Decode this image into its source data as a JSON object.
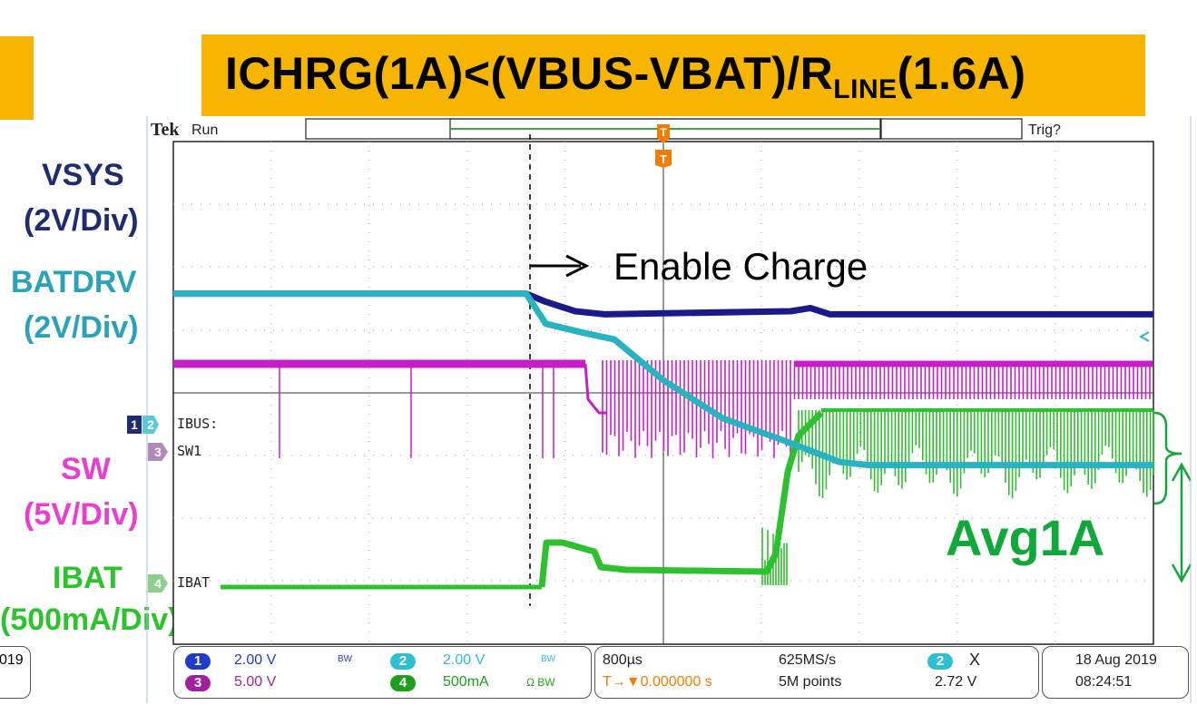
{
  "title": {
    "main": "ICHRG(1A)<(VBUS-VBAT)/R",
    "sub": "LINE",
    "tail": "(1.6A)"
  },
  "scope": {
    "brand": "Tek",
    "mode": "Run",
    "trigger_status": "Trig?",
    "trigger_marker": "T"
  },
  "chart_data": {
    "type": "line",
    "title": "ICHRG(1A)<(VBUS-VBAT)/RLINE(1.6A)",
    "xlabel": "",
    "ylabel": "",
    "x_divisions": 10,
    "y_divisions": 8,
    "time_per_div": "800µs",
    "grid": true,
    "series": [
      {
        "name": "VSYS",
        "scale": "2V/Div",
        "color": "#1a1a8c",
        "points": [
          [
            0,
            5.58
          ],
          [
            3.6,
            5.58
          ],
          [
            3.8,
            5.45
          ],
          [
            4.1,
            5.3
          ],
          [
            4.4,
            5.25
          ],
          [
            6.3,
            5.3
          ],
          [
            6.5,
            5.35
          ],
          [
            6.7,
            5.25
          ],
          [
            10,
            5.25
          ]
        ]
      },
      {
        "name": "BATDRV",
        "scale": "2V/Div",
        "color": "#29b3c0",
        "points": [
          [
            0,
            5.58
          ],
          [
            3.6,
            5.58
          ],
          [
            3.8,
            5.1
          ],
          [
            4.2,
            4.95
          ],
          [
            4.5,
            4.85
          ],
          [
            5.0,
            4.2
          ],
          [
            5.6,
            3.6
          ],
          [
            6.3,
            3.2
          ],
          [
            6.8,
            2.9
          ],
          [
            7.1,
            2.85
          ],
          [
            10,
            2.85
          ]
        ]
      }
    ],
    "annotations": [
      {
        "text": "Enable Charge"
      },
      {
        "text": "Avg1A"
      }
    ]
  },
  "labels": {
    "vsys_name": "VSYS",
    "vsys_scale": "(2V/Div)",
    "batdrv_name": "BATDRV",
    "batdrv_scale": "(2V/Div)",
    "sw_name": "SW",
    "sw_scale": "(5V/Div)",
    "ibat_name": "IBAT",
    "ibat_scale": "500mA/Div)",
    "ibat_scale_paren": "(",
    "year_fragment": "019"
  },
  "markers": {
    "ch1": "1",
    "ch2": "2",
    "ch3": "3",
    "ch4": "4",
    "ibus": "IBUS:",
    "sw1": "SW1",
    "ibat": "IBAT"
  },
  "annotations": {
    "enable_charge": "Enable Charge",
    "avg": "Avg1A"
  },
  "footer": {
    "ch1_num": "1",
    "ch1_val": "2.00 V",
    "ch1_bw": "BW",
    "ch2_num": "2",
    "ch2_val": "2.00 V",
    "ch2_bw": "BW",
    "ch3_num": "3",
    "ch3_val": "5.00 V",
    "ch4_num": "4",
    "ch4_val": "500mA",
    "ch4_bw": "Ω BW",
    "timebase": "800µs",
    "trigger_pos": "T→▼0.000000 s",
    "sample_rate": "625MS/s",
    "record_length": "5M points",
    "cursor_ch": "2",
    "cursor_label": "X",
    "cursor_val": "2.72 V",
    "date": "18 Aug 2019",
    "time": "08:24:51"
  },
  "colors": {
    "banner": "#f7b500",
    "vsys": "#1a1a8c",
    "batdrv": "#29b3c0",
    "sw": "#c81ec8",
    "ibat": "#2ec02e",
    "ibat_label": "#10a83a"
  }
}
